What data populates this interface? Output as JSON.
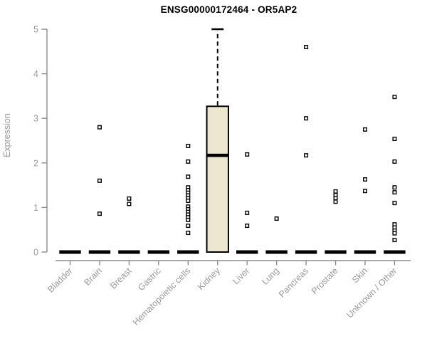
{
  "chart_data": {
    "type": "box",
    "title": "ENSG00000172464 - OR5AP2",
    "ylabel": "Expression",
    "xlabel": "",
    "ylim": [
      0,
      5
    ],
    "yticks": [
      0,
      1,
      2,
      3,
      4,
      5
    ],
    "grid": false,
    "legend": "none",
    "categories": [
      "Bladder",
      "Brain",
      "Breast",
      "Gastric",
      "Hematopoietic cells",
      "Kidney",
      "Liver",
      "Lung",
      "Pancreas",
      "Prostate",
      "Skin",
      "Unknown / Other"
    ],
    "series": [
      {
        "category": "Bladder",
        "median": 0,
        "points": []
      },
      {
        "category": "Brain",
        "median": 0,
        "points": [
          2.8,
          1.6,
          0.86
        ]
      },
      {
        "category": "Breast",
        "median": 0,
        "points": [
          1.2,
          1.08
        ]
      },
      {
        "category": "Gastric",
        "median": 0,
        "points": []
      },
      {
        "category": "Hematopoietic cells",
        "median": 0,
        "points": [
          2.38,
          2.03,
          1.69,
          1.45,
          1.39,
          1.33,
          1.27,
          1.21,
          1.15,
          1.02,
          0.96,
          0.9,
          0.84,
          0.78,
          0.72,
          0.59,
          0.43
        ]
      },
      {
        "category": "Kidney",
        "box": {
          "whisker_min": 0,
          "q1": 0,
          "median": 2.17,
          "q3": 3.27,
          "whisker_max": 5.0
        },
        "points": []
      },
      {
        "category": "Liver",
        "median": 0,
        "points": [
          2.19,
          0.88,
          0.59
        ]
      },
      {
        "category": "Lung",
        "median": 0,
        "points": [
          0.75
        ]
      },
      {
        "category": "Pancreas",
        "median": 0,
        "points": [
          4.6,
          3.0,
          2.17
        ]
      },
      {
        "category": "Prostate",
        "median": 0,
        "points": [
          1.36,
          1.28,
          1.21,
          1.13
        ]
      },
      {
        "category": "Skin",
        "median": 0,
        "points": [
          2.75,
          1.63,
          1.37
        ]
      },
      {
        "category": "Unknown / Other",
        "median": 0,
        "points": [
          3.48,
          2.54,
          2.03,
          1.45,
          1.34,
          1.1,
          0.62,
          0.55,
          0.48,
          0.42,
          0.27
        ]
      }
    ],
    "colors": {
      "box_fill": "#EDE7CF",
      "box_stroke": "#000000",
      "median": "#000000",
      "zero_bar": "#000000",
      "marker_stroke": "#000000",
      "marker_fill": "#FFFFFF",
      "axis": "#8C8C8C",
      "tick_label": "#9A9A9A",
      "title": "#000000"
    }
  }
}
